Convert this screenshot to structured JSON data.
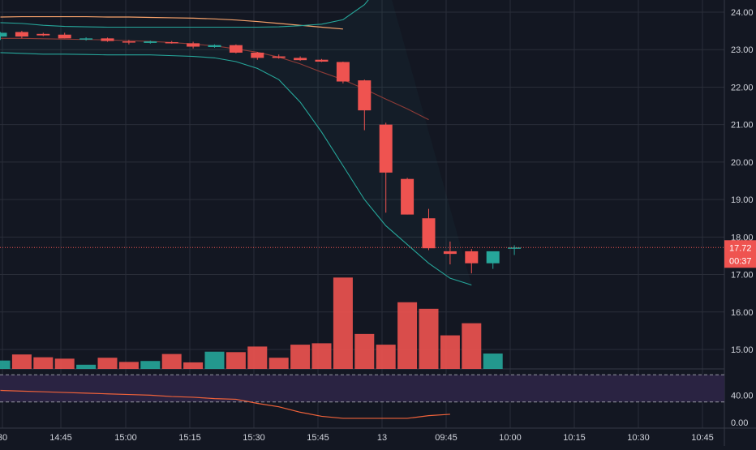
{
  "colors": {
    "background": "#131722",
    "grid": "#2a2e39",
    "up": "#26a69a",
    "down": "#ef5350",
    "axis_text": "#d1d4dc",
    "bb_band": "#26a69a",
    "bb_basis": "#8d3b37",
    "ma_long": "#f7a26b",
    "rsi_line": "#f0623a",
    "rsi_fill": "#2a2342",
    "rsi_guides": "#9598a1",
    "price_line": "#ef5350"
  },
  "chart_data": {
    "type": "candlestick",
    "y_axis": {
      "ticks": [
        "24.00",
        "23.00",
        "22.00",
        "21.00",
        "20.00",
        "19.00",
        "18.00",
        "17.00",
        "16.00",
        "15.00"
      ],
      "ylim": [
        14.49,
        24.24
      ]
    },
    "x_axis": {
      "ticks": [
        "30",
        "14:45",
        "15:00",
        "15:15",
        "15:30",
        "15:45",
        "13",
        "09:45",
        "10:00",
        "10:15",
        "10:30",
        "10:45"
      ]
    },
    "candles": [
      {
        "o": 23.35,
        "h": 23.47,
        "l": 23.26,
        "c": 23.45
      },
      {
        "o": 23.47,
        "h": 23.5,
        "l": 23.3,
        "c": 23.35
      },
      {
        "o": 23.42,
        "h": 23.45,
        "l": 23.36,
        "c": 23.38
      },
      {
        "o": 23.4,
        "h": 23.45,
        "l": 23.3,
        "c": 23.3
      },
      {
        "o": 23.27,
        "h": 23.33,
        "l": 23.24,
        "c": 23.3
      },
      {
        "o": 23.3,
        "h": 23.32,
        "l": 23.21,
        "c": 23.23
      },
      {
        "o": 23.22,
        "h": 23.26,
        "l": 23.14,
        "c": 23.19
      },
      {
        "o": 23.18,
        "h": 23.24,
        "l": 23.16,
        "c": 23.22
      },
      {
        "o": 23.2,
        "h": 23.23,
        "l": 23.16,
        "c": 23.18
      },
      {
        "o": 23.17,
        "h": 23.21,
        "l": 23.03,
        "c": 23.08
      },
      {
        "o": 23.07,
        "h": 23.14,
        "l": 23.05,
        "c": 23.12
      },
      {
        "o": 23.12,
        "h": 23.14,
        "l": 22.9,
        "c": 22.92
      },
      {
        "o": 22.92,
        "h": 22.94,
        "l": 22.73,
        "c": 22.78
      },
      {
        "o": 22.82,
        "h": 22.87,
        "l": 22.76,
        "c": 22.78
      },
      {
        "o": 22.78,
        "h": 22.82,
        "l": 22.7,
        "c": 22.72
      },
      {
        "o": 22.73,
        "h": 22.75,
        "l": 22.67,
        "c": 22.68
      },
      {
        "o": 22.67,
        "h": 22.68,
        "l": 22.1,
        "c": 22.15
      },
      {
        "o": 22.18,
        "h": 22.2,
        "l": 20.85,
        "c": 21.38
      },
      {
        "o": 21.0,
        "h": 21.05,
        "l": 18.65,
        "c": 19.72
      },
      {
        "o": 19.55,
        "h": 19.58,
        "l": 18.6,
        "c": 18.6
      },
      {
        "o": 18.5,
        "h": 18.75,
        "l": 17.65,
        "c": 17.7
      },
      {
        "o": 17.62,
        "h": 17.88,
        "l": 17.27,
        "c": 17.55
      },
      {
        "o": 17.62,
        "h": 17.68,
        "l": 17.03,
        "c": 17.3
      },
      {
        "o": 17.3,
        "h": 17.58,
        "l": 17.15,
        "c": 17.62
      },
      {
        "o": 17.72,
        "h": 17.78,
        "l": 17.52,
        "c": 17.72
      }
    ],
    "volume": [
      18,
      31,
      25,
      22,
      9,
      24,
      15,
      17,
      32,
      14,
      37,
      36,
      48,
      24,
      52,
      55,
      196,
      75,
      52,
      143,
      129,
      72,
      98,
      33
    ],
    "volume_max": 200,
    "bollinger_upper": [
      23.72,
      23.7,
      23.65,
      23.62,
      23.61,
      23.6,
      23.6,
      23.6,
      23.6,
      23.6,
      23.6,
      23.6,
      23.6,
      23.61,
      23.64,
      23.68,
      23.8,
      24.2,
      24.9
    ],
    "bollinger_basis": [
      23.3,
      23.3,
      23.29,
      23.28,
      23.27,
      23.26,
      23.24,
      23.22,
      23.19,
      23.15,
      23.1,
      23.02,
      22.93,
      22.8,
      22.62,
      22.4,
      22.2,
      21.95,
      21.68,
      21.42,
      21.13
    ],
    "bollinger_lower": [
      22.92,
      22.9,
      22.88,
      22.88,
      22.87,
      22.86,
      22.86,
      22.86,
      22.84,
      22.82,
      22.78,
      22.68,
      22.5,
      22.2,
      21.6,
      20.8,
      19.9,
      19.0,
      18.3,
      17.8,
      17.3,
      16.9,
      16.72
    ],
    "ma_long": [
      23.87,
      23.88,
      23.88,
      23.88,
      23.88,
      23.87,
      23.87,
      23.86,
      23.85,
      23.84,
      23.82,
      23.79,
      23.75,
      23.7,
      23.65,
      23.6,
      23.55
    ],
    "last_price": "17.72",
    "countdown": "00:37",
    "rsi": {
      "values": [
        47,
        46,
        45,
        44,
        43,
        42,
        41,
        40,
        38,
        37,
        35,
        34,
        28,
        23,
        15,
        9,
        6,
        6,
        6,
        6,
        10,
        12
      ],
      "upper_band": 70,
      "lower_band": 30,
      "ylim": [
        0,
        75
      ],
      "tick_labels": [
        "40.00",
        "0.00"
      ]
    }
  }
}
